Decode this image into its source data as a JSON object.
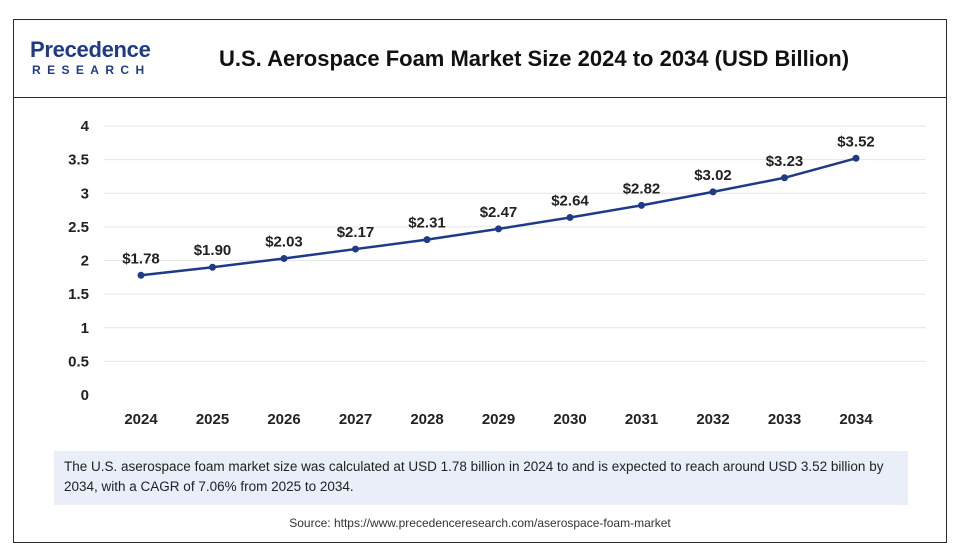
{
  "logo": {
    "line1": "Precedence",
    "line2": "RESEARCH"
  },
  "title": "U.S. Aerospace Foam Market Size 2024 to 2034 (USD Billion)",
  "note": "The U.S. aserospace foam market size was calculated at USD 1.78 billion in 2024 to and is expected to reach around USD 3.52 billion by 2034, with a CAGR of 7.06% from 2025 to 2034.",
  "source": "Source: https://www.precedenceresearch.com/aserospace-foam-market",
  "colors": {
    "line": "#1f3b87",
    "grid": "#e6e6e6",
    "brand": "#1f3b87"
  },
  "chart_data": {
    "type": "line",
    "title": "U.S. Aerospace Foam Market Size 2024 to 2034 (USD Billion)",
    "xlabel": "",
    "ylabel": "",
    "categories": [
      "2024",
      "2025",
      "2026",
      "2027",
      "2028",
      "2029",
      "2030",
      "2031",
      "2032",
      "2033",
      "2034"
    ],
    "series": [
      {
        "values": [
          1.78,
          1.9,
          2.03,
          2.17,
          2.31,
          2.47,
          2.64,
          2.82,
          3.02,
          3.23,
          3.52
        ],
        "labels": [
          "$1.78",
          "$1.90",
          "$2.03",
          "$2.17",
          "$2.31",
          "$2.47",
          "$2.64",
          "$2.82",
          "$3.02",
          "$3.23",
          "$3.52"
        ]
      }
    ],
    "ylim": [
      0,
      4
    ],
    "yticks": [
      "0",
      "0.5",
      "1",
      "1.5",
      "2",
      "2.5",
      "3",
      "3.5",
      "4"
    ],
    "grid": true
  }
}
